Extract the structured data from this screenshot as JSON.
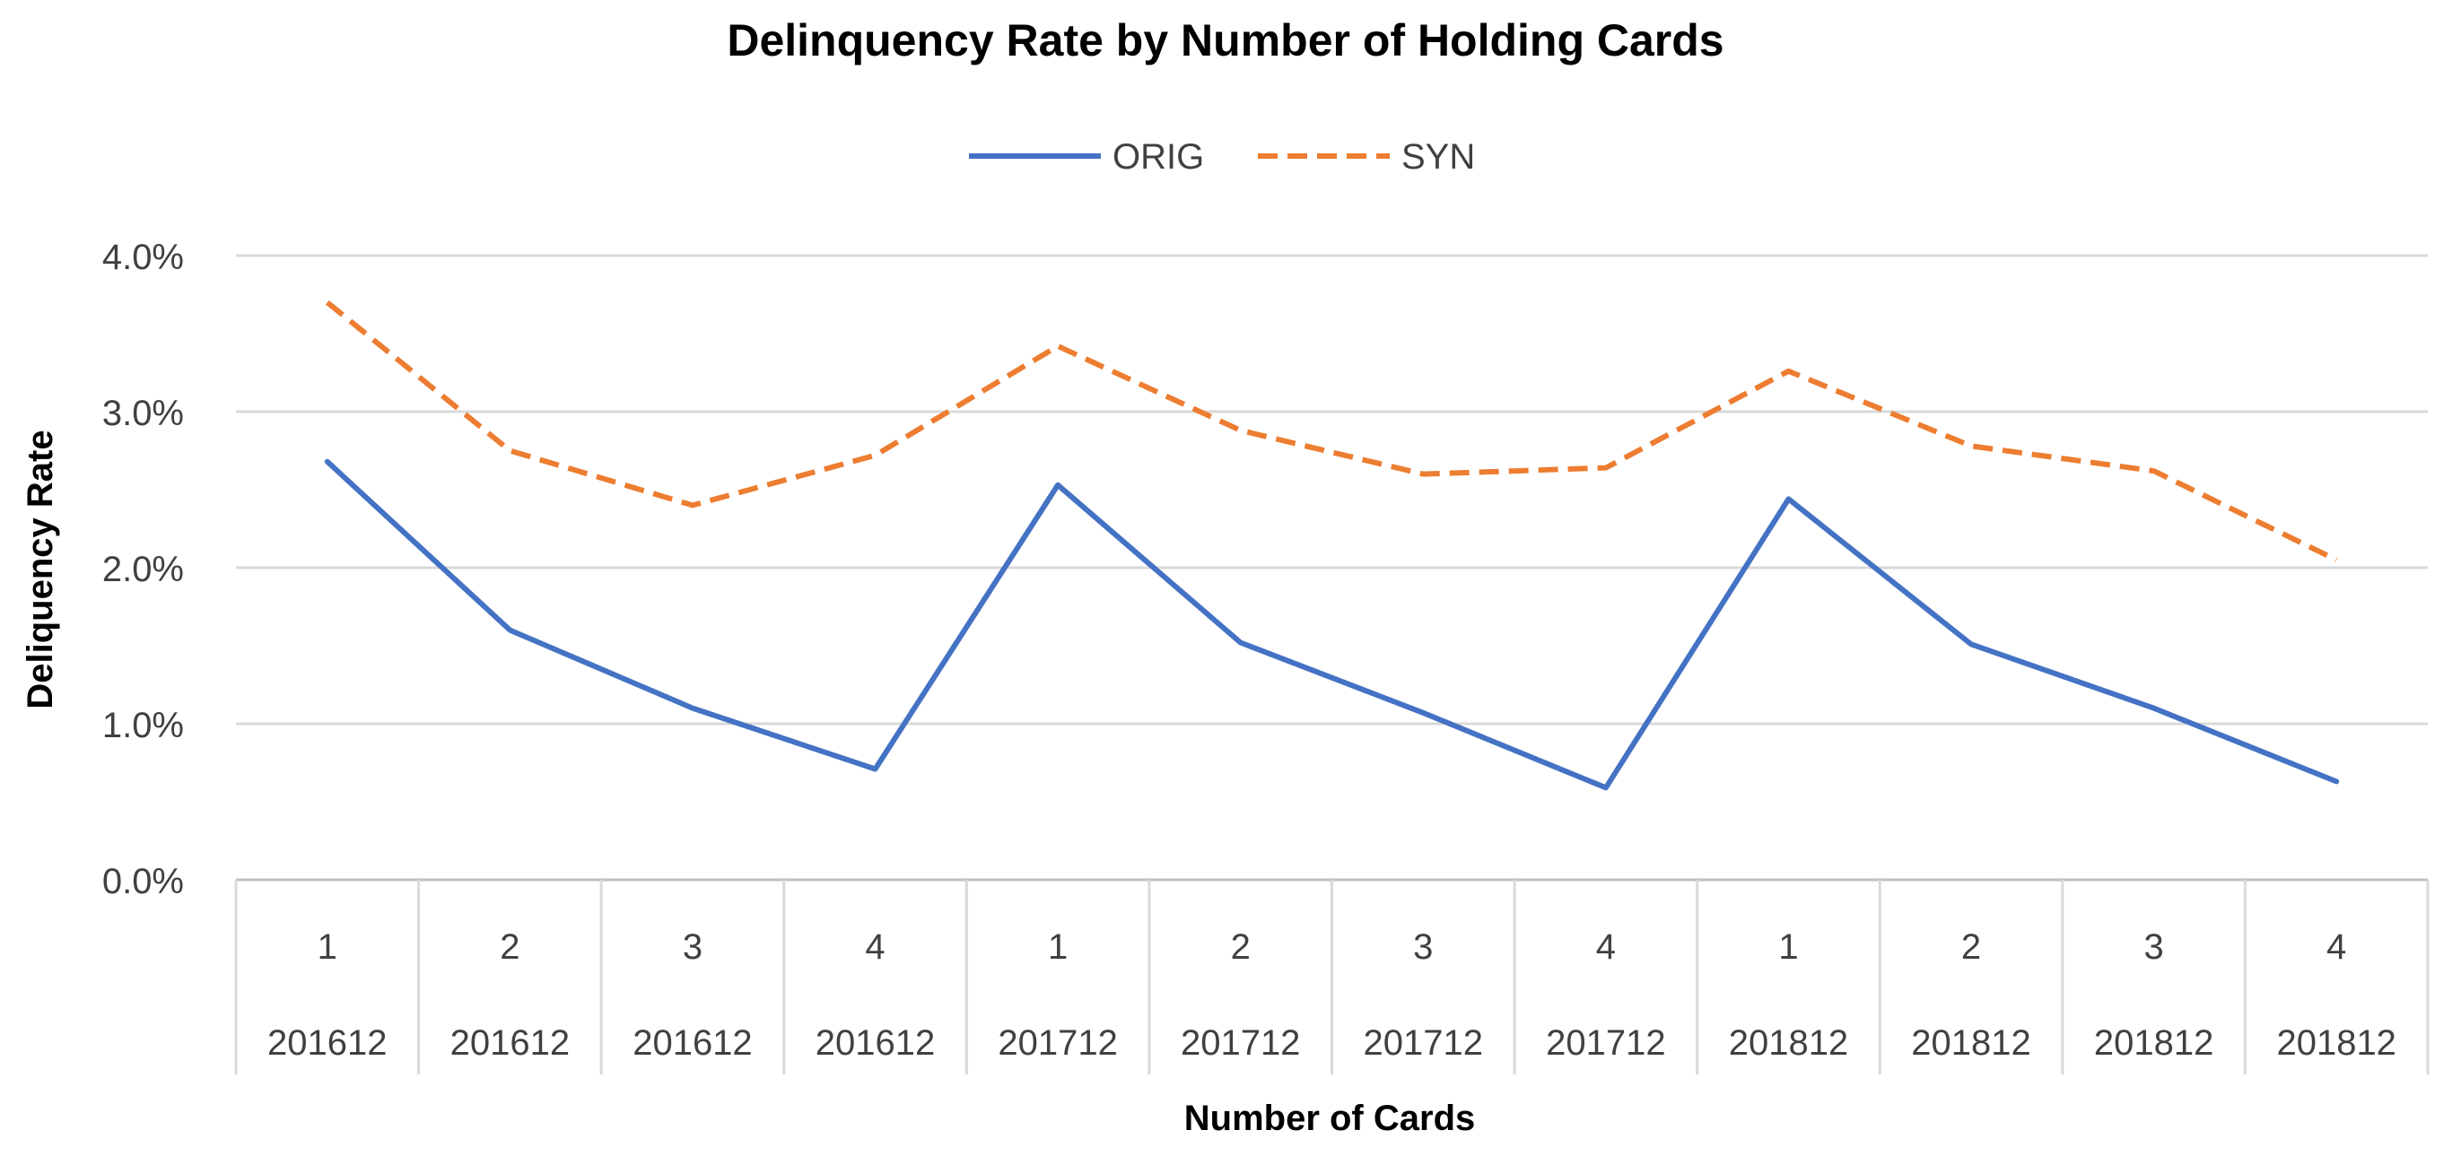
{
  "chart_data": {
    "type": "line",
    "title": "Delinquency Rate by Number of Holding Cards",
    "xlabel": "Number of Cards",
    "ylabel": "Deliquency Rate",
    "legend_position": "top-center",
    "grid": true,
    "ylim": [
      0,
      0.04
    ],
    "y_ticks": [
      0,
      0.01,
      0.02,
      0.03,
      0.04
    ],
    "y_tick_labels": [
      "0.0%",
      "1.0%",
      "2.0%",
      "3.0%",
      "4.0%"
    ],
    "categories": [
      {
        "cards": "1",
        "period": "201612"
      },
      {
        "cards": "2",
        "period": "201612"
      },
      {
        "cards": "3",
        "period": "201612"
      },
      {
        "cards": "4",
        "period": "201612"
      },
      {
        "cards": "1",
        "period": "201712"
      },
      {
        "cards": "2",
        "period": "201712"
      },
      {
        "cards": "3",
        "period": "201712"
      },
      {
        "cards": "4",
        "period": "201712"
      },
      {
        "cards": "1",
        "period": "201812"
      },
      {
        "cards": "2",
        "period": "201812"
      },
      {
        "cards": "3",
        "period": "201812"
      },
      {
        "cards": "4",
        "period": "201812"
      }
    ],
    "series": [
      {
        "name": "ORIG",
        "color": "#4472C4",
        "dash": "solid",
        "values": [
          0.0268,
          0.016,
          0.011,
          0.0071,
          0.0253,
          0.0152,
          0.0107,
          0.0059,
          0.0244,
          0.0151,
          0.011,
          0.0063
        ]
      },
      {
        "name": "SYN",
        "color": "#ED7D31",
        "dash": "dashed",
        "values": [
          0.037,
          0.0275,
          0.024,
          0.0272,
          0.0342,
          0.0288,
          0.026,
          0.0264,
          0.0326,
          0.0278,
          0.0262,
          0.0205
        ]
      }
    ]
  }
}
